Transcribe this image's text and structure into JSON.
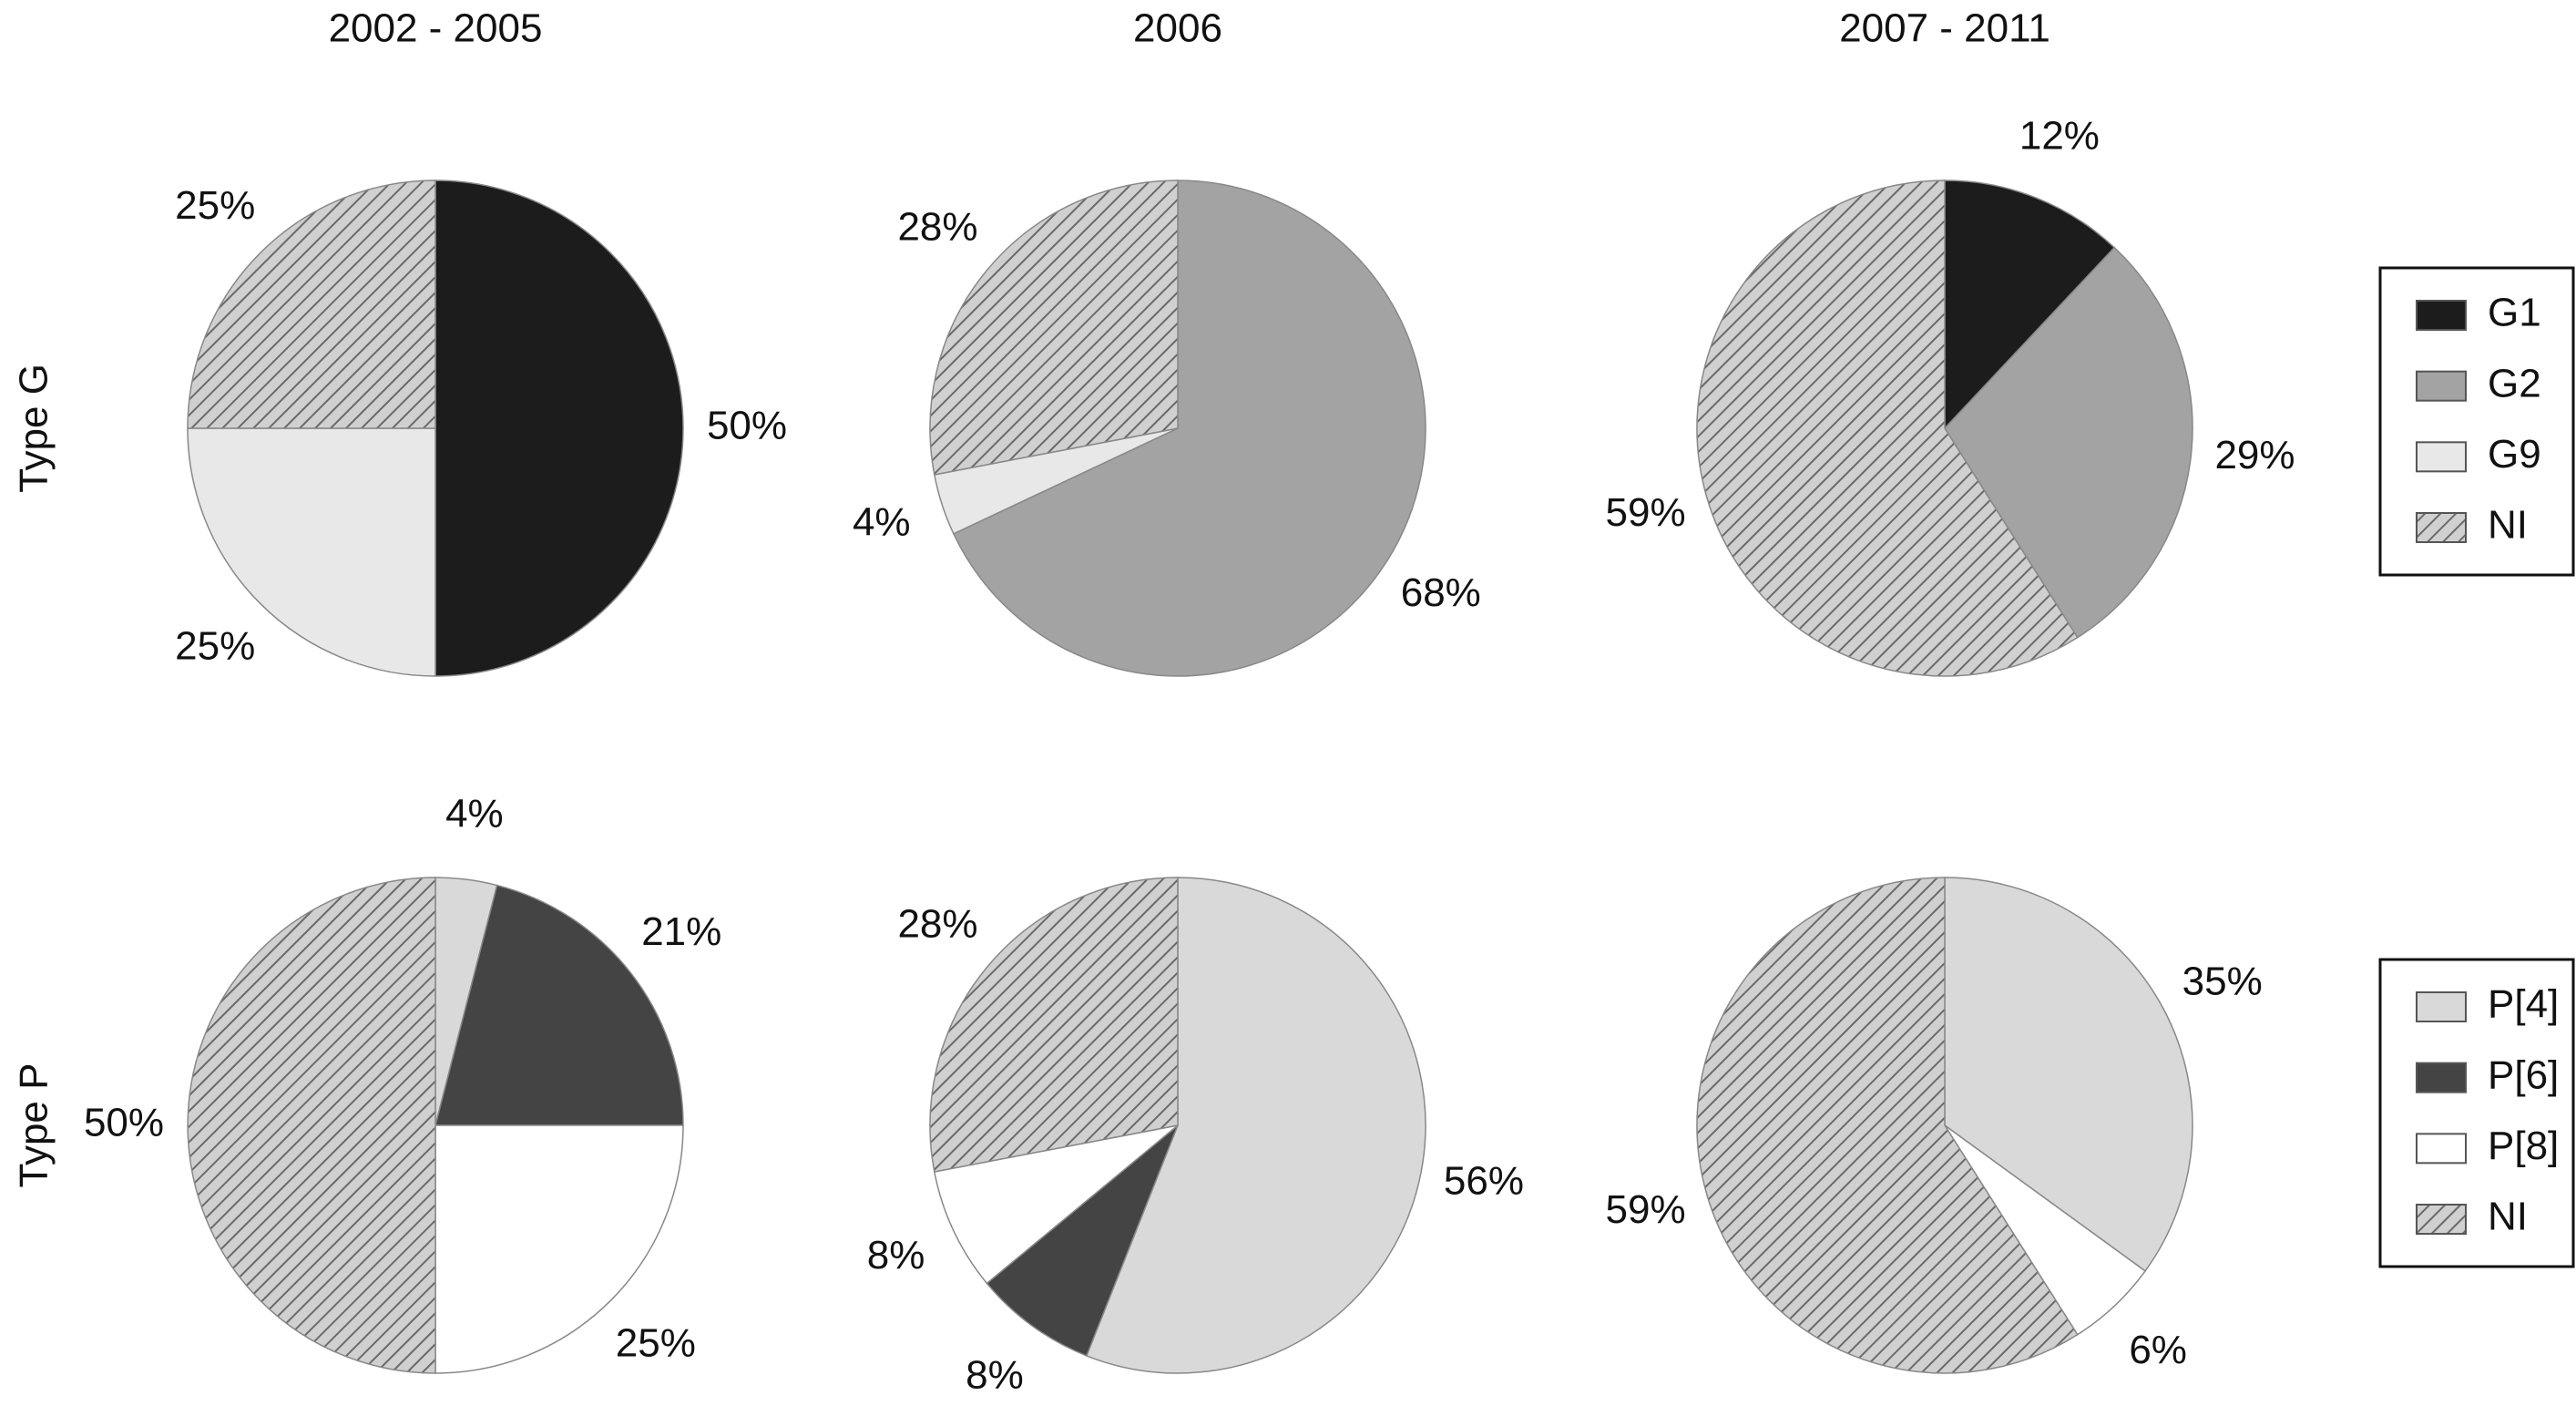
{
  "chart_data": [
    {
      "type": "pie",
      "ylabel": "Type G",
      "categories": [
        "G1",
        "G2",
        "G9",
        "NI"
      ],
      "colors": [
        "#1c1c1c",
        "#a3a3a3",
        "#e8e8e8",
        "#c4c4c4"
      ],
      "hatch": [
        false,
        false,
        false,
        true
      ],
      "pies": [
        {
          "title": "2002 - 2005",
          "values": [
            50,
            null,
            25,
            25
          ],
          "value_labels": [
            "50%",
            null,
            "25%",
            "25%"
          ]
        },
        {
          "title": "2006",
          "values": [
            null,
            68,
            4,
            28
          ],
          "value_labels": [
            null,
            "68%",
            "4%",
            "28%"
          ]
        },
        {
          "title": "2007 - 2011",
          "values": [
            12,
            29,
            null,
            59
          ],
          "value_labels": [
            "12%",
            "29%",
            null,
            "59%"
          ]
        }
      ]
    },
    {
      "type": "pie",
      "ylabel": "Type P",
      "categories": [
        "P[4]",
        "P[6]",
        "P[8]",
        "NI"
      ],
      "colors": [
        "#d9d9d9",
        "#444444",
        "#ffffff",
        "#c4c4c4"
      ],
      "hatch": [
        false,
        false,
        false,
        true
      ],
      "pies": [
        {
          "values": [
            4,
            21,
            25,
            50
          ],
          "value_labels": [
            "4%",
            "21%",
            "25%",
            "50%"
          ]
        },
        {
          "values": [
            56,
            8,
            8,
            28
          ],
          "value_labels": [
            "56%",
            "8%",
            "8%",
            "28%"
          ]
        },
        {
          "values": [
            35,
            null,
            6,
            59
          ],
          "value_labels": [
            "35%",
            null,
            "6%",
            "59%"
          ]
        }
      ]
    }
  ]
}
